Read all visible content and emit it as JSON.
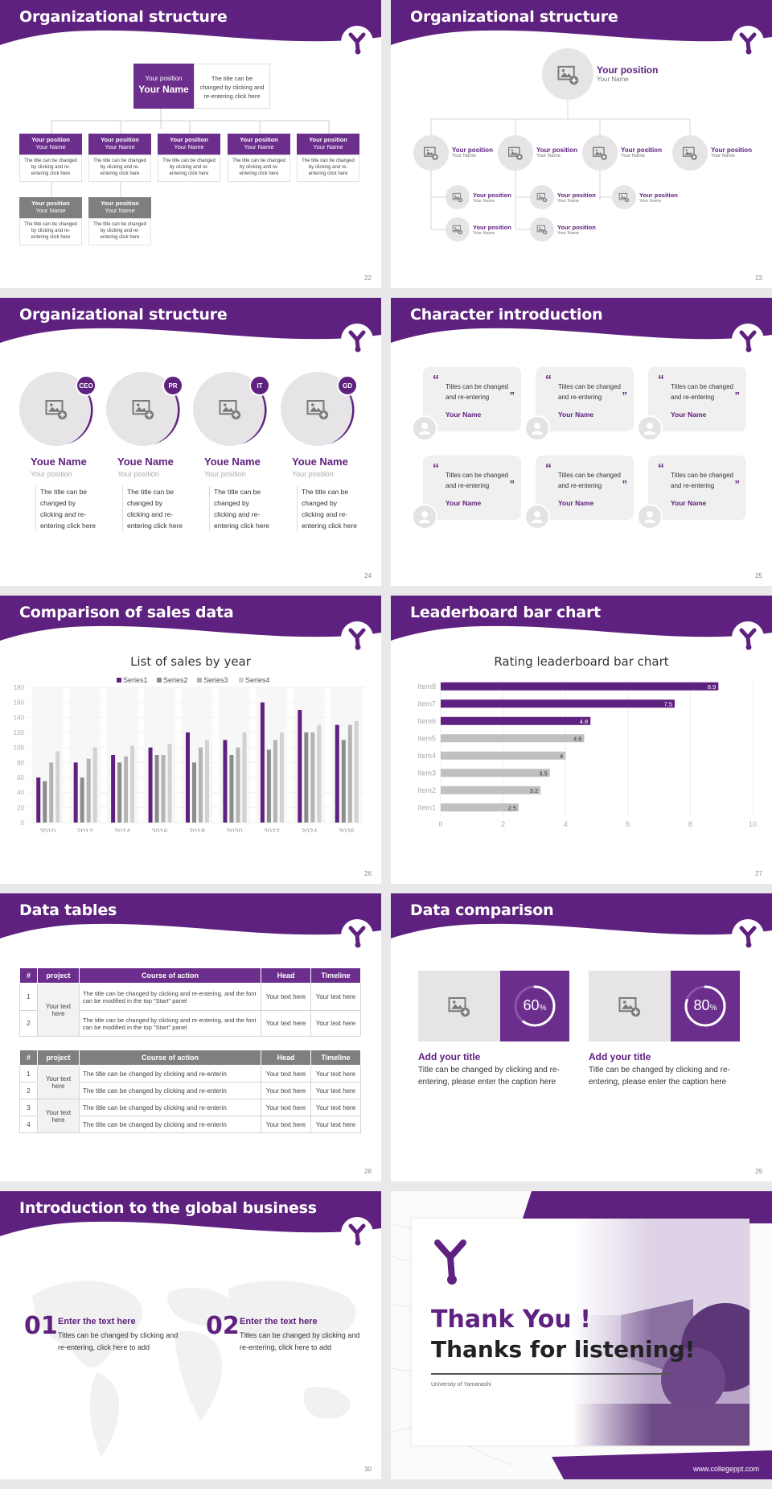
{
  "colors": {
    "accent": "#5f217f",
    "accent2": "#6b2e8c",
    "gray": "#7f7f7f",
    "light": "#e6e4e6"
  },
  "slides": {
    "s22": {
      "title": "Organizational structure",
      "page": "22",
      "top": {
        "position": "Your position",
        "name": "Your Name",
        "note": "The title can be changed by clicking and re-entering click here"
      },
      "row1": [
        {
          "position": "Your position",
          "name": "Your Name",
          "note": "The title can be changed by clicking and re-entering click here"
        },
        {
          "position": "Your position",
          "name": "Your Name",
          "note": "The title can be changed by clicking and re-entering click here"
        },
        {
          "position": "Your position",
          "name": "Your Name",
          "note": "The title can be changed by clicking and re-entering click here"
        },
        {
          "position": "Your position",
          "name": "Your Name",
          "note": "The title can be changed by clicking and re-entering click here"
        },
        {
          "position": "Your position",
          "name": "Your Name",
          "note": "The title can be changed by clicking and re-entering click here"
        }
      ],
      "row2": [
        {
          "position": "Your position",
          "name": "Your Name",
          "note": "The title can be changed by clicking and re-entering click here"
        },
        {
          "position": "Your position",
          "name": "Your Name",
          "note": "The title can be changed by clicking and re-entering click here"
        }
      ]
    },
    "s23": {
      "title": "Organizational structure",
      "page": "23",
      "top": {
        "position": "Your position",
        "name": "Your Name"
      },
      "mid": [
        {
          "position": "Your position",
          "name": "Your Name"
        },
        {
          "position": "Your position",
          "name": "Your Name"
        },
        {
          "position": "Your position",
          "name": "Your Name"
        },
        {
          "position": "Your position",
          "name": "Your Name"
        }
      ],
      "sub": [
        {
          "position": "Your position",
          "name": "Your Name"
        },
        {
          "position": "Your position",
          "name": "Your Name"
        },
        {
          "position": "Your position",
          "name": "Your Name"
        },
        {
          "position": "Your position",
          "name": "Your Name"
        },
        {
          "position": "Your position",
          "name": "Your Name"
        }
      ]
    },
    "s24": {
      "title": "Organizational structure",
      "page": "24",
      "people": [
        {
          "badge": "CEO",
          "name": "Youe Name",
          "position": "Your position",
          "desc": "The title can be changed by clicking and re-entering click here"
        },
        {
          "badge": "PR",
          "name": "Youe Name",
          "position": "Your position",
          "desc": "The title can be changed by clicking and re-entering click here"
        },
        {
          "badge": "IT",
          "name": "Youe Name",
          "position": "Your position",
          "desc": "The title can be changed by clicking and re-entering click here"
        },
        {
          "badge": "GD",
          "name": "Youe Name",
          "position": "Your position",
          "desc": "The title can be changed by clicking and re-entering click here"
        }
      ]
    },
    "s25": {
      "title": "Character introduction",
      "page": "25",
      "cards": [
        {
          "text": "Titles can be changed and re-entering",
          "name": "Your Name"
        },
        {
          "text": "Titles can be changed and re-entering",
          "name": "Your Name"
        },
        {
          "text": "Titles can be changed and re-entering",
          "name": "Your Name"
        },
        {
          "text": "Titles can be changed and re-entering",
          "name": "Your Name"
        },
        {
          "text": "Titles can be changed and re-entering",
          "name": "Your Name"
        },
        {
          "text": "Titles can be changed and re-entering",
          "name": "Your Name"
        }
      ]
    },
    "s26": {
      "title": "Comparison of sales data",
      "page": "26"
    },
    "s27": {
      "title": "Leaderboard bar chart",
      "page": "27"
    },
    "s28": {
      "title": "Data tables",
      "page": "28",
      "t1": {
        "headers": [
          "#",
          "project",
          "Course of action",
          "Head",
          "Timeline"
        ],
        "project": "Your text here",
        "rows": [
          {
            "n": "1",
            "action": "The title can be changed by clicking and re-entering, and the font can be modified in the top \"Start\" panel",
            "head": "Your text here",
            "time": "Your text here"
          },
          {
            "n": "2",
            "action": "The title can be changed by clicking and re-entering, and the font can be modified in the top \"Start\" panel",
            "head": "Your text here",
            "time": "Your text here"
          }
        ]
      },
      "t2": {
        "headers": [
          "#",
          "project",
          "Course of action",
          "Head",
          "Timeline"
        ],
        "projects": [
          "Your text here",
          "Your text here"
        ],
        "rows": [
          {
            "n": "1",
            "action": "The title can be changed by clicking and re-enterin",
            "head": "Your text here",
            "time": "Your text here"
          },
          {
            "n": "2",
            "action": "The title can be changed by clicking and re-enterin",
            "head": "Your text here",
            "time": "Your text here"
          },
          {
            "n": "3",
            "action": "The title can be changed by clicking and re-enterin",
            "head": "Your text here",
            "time": "Your text here"
          },
          {
            "n": "4",
            "action": "The title can be changed by clicking and re-enterin",
            "head": "Your text here",
            "time": "Your text here"
          }
        ]
      }
    },
    "s29": {
      "title": "Data comparison",
      "page": "29",
      "items": [
        {
          "pct": "60",
          "unit": "%",
          "value": 0.6,
          "heading": "Add your title",
          "text": "Title can be changed by clicking and re-entering, please enter the caption here"
        },
        {
          "pct": "80",
          "unit": "%",
          "value": 0.8,
          "heading": "Add your title",
          "text": "Title can be changed by clicking and re-entering, please enter the caption here"
        }
      ]
    },
    "s30": {
      "title": "Introduction to the global business",
      "page": "30",
      "items": [
        {
          "num": "01",
          "heading": "Enter the text here",
          "text": "Titles can be changed by clicking and re-entering, click here to add"
        },
        {
          "num": "02",
          "heading": "Enter the text here",
          "text": "Titles can be changed by clicking and re-entering, click here to add"
        }
      ]
    },
    "s31": {
      "line1": "Thank You !",
      "line2": "Thanks for listening!",
      "university": "University of Yamanashi",
      "url": "www.collegeppt.com"
    }
  },
  "chart_data": [
    {
      "type": "bar",
      "title": "List of sales by year",
      "categories": [
        "2010",
        "2012",
        "2014",
        "2016",
        "2018",
        "2020",
        "2022",
        "2024",
        "2026"
      ],
      "series": [
        {
          "name": "Series1",
          "color": "#5f217f",
          "values": [
            60,
            80,
            90,
            100,
            120,
            110,
            160,
            150,
            130
          ]
        },
        {
          "name": "Series2",
          "color": "#8c8c8c",
          "values": [
            55,
            60,
            80,
            90,
            80,
            90,
            97,
            120,
            110
          ]
        },
        {
          "name": "Series3",
          "color": "#b4b4b4",
          "values": [
            80,
            85,
            88,
            90,
            100,
            100,
            110,
            120,
            130
          ]
        },
        {
          "name": "Series4",
          "color": "#d2d2d2",
          "values": [
            95,
            100,
            102,
            105,
            110,
            120,
            120,
            130,
            135
          ]
        }
      ],
      "ylim": [
        0,
        180
      ],
      "yticks": [
        "0",
        "20",
        "40",
        "60",
        "80",
        "100",
        "120",
        "140",
        "160",
        "180"
      ],
      "legend": "top",
      "grid": true
    },
    {
      "type": "bar",
      "orientation": "horizontal",
      "title": "Rating leaderboard bar chart",
      "categories": [
        "Item8",
        "Item7",
        "Item6",
        "Item5",
        "Item4",
        "Item3",
        "Item2",
        "Item1"
      ],
      "values": [
        8.9,
        7.5,
        4.8,
        4.6,
        4,
        3.5,
        3.2,
        2.5
      ],
      "labels": [
        "8.9",
        "7.5",
        "4.8",
        "4.6",
        "4",
        "3.5",
        "3.2",
        "2.5"
      ],
      "highlight_colors": [
        "#5f217f",
        "#5f217f",
        "#5f217f",
        "#c0c0c0",
        "#c0c0c0",
        "#c0c0c0",
        "#c0c0c0",
        "#c0c0c0"
      ],
      "xlim": [
        0,
        10
      ],
      "xticks": [
        "0",
        "2",
        "4",
        "6",
        "8",
        "10"
      ],
      "grid": true
    }
  ]
}
